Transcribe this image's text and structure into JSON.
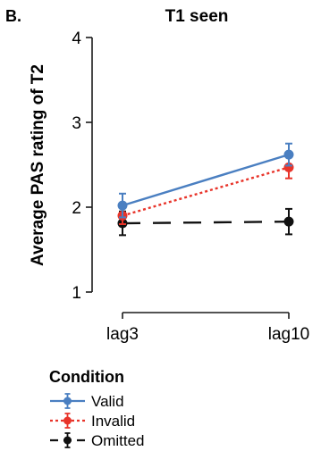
{
  "chart_data": {
    "type": "line",
    "panel_label": "B.",
    "title": "T1 seen",
    "xlabel": "",
    "ylabel": "Average PAS rating of T2",
    "categories": [
      "lag3",
      "lag10"
    ],
    "ylim": [
      1,
      4
    ],
    "yticks": [
      1,
      2,
      3,
      4
    ],
    "grid": false,
    "legend": {
      "title": "Condition",
      "placement": "bottom-left"
    },
    "series": [
      {
        "name": "Valid",
        "values": [
          2.02,
          2.62
        ],
        "err": [
          0.14,
          0.13
        ],
        "color": "#4a7fc1",
        "dash": "solid"
      },
      {
        "name": "Invalid",
        "values": [
          1.9,
          2.47
        ],
        "err": [
          0.1,
          0.13
        ],
        "color": "#e8342a",
        "dash": "dotted"
      },
      {
        "name": "Omitted",
        "values": [
          1.81,
          1.83
        ],
        "err": [
          0.14,
          0.15
        ],
        "color": "#111111",
        "dash": "dashed"
      }
    ]
  }
}
